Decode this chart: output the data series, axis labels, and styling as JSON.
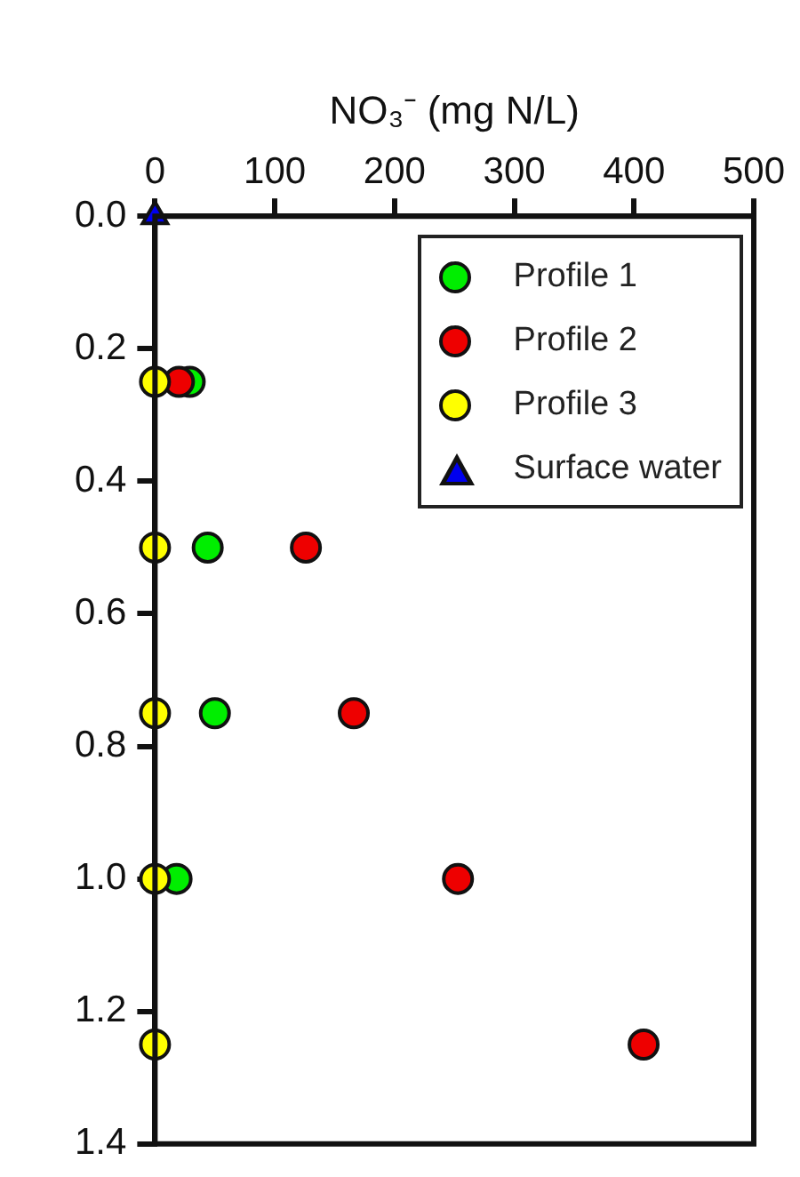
{
  "chart_data": {
    "type": "scatter",
    "xlabel": "NO₃⁻ (mg N/L)",
    "xlim": [
      0,
      500
    ],
    "xticks": [
      0,
      100,
      200,
      300,
      400,
      500
    ],
    "ylim": [
      1.4,
      0
    ],
    "yticks": [
      {
        "value": 0,
        "label": "0.0"
      },
      {
        "value": 0.2,
        "label": "0.2"
      },
      {
        "value": 0.4,
        "label": "0.4"
      },
      {
        "value": 0.6,
        "label": "0.6"
      },
      {
        "value": 0.8,
        "label": "0.8"
      },
      {
        "value": 1,
        "label": "1.0"
      },
      {
        "value": 1.2,
        "label": "1.2"
      },
      {
        "value": 1.4,
        "label": "1.4"
      }
    ],
    "grid": false,
    "legend": "top right",
    "series": [
      {
        "name": "Profile 1",
        "color": "#00ee00",
        "marker": "circle",
        "x": [
          29,
          44,
          50,
          18
        ],
        "values": [
          0.25,
          0.5,
          0.75,
          1.0
        ]
      },
      {
        "name": "Profile 2",
        "color": "#ee0000",
        "marker": "circle",
        "x": [
          20,
          126,
          166,
          253,
          408
        ],
        "values": [
          0.25,
          0.5,
          0.75,
          1.0,
          1.25
        ]
      },
      {
        "name": "Profile 3",
        "color": "#ffff00",
        "marker": "circle",
        "x": [
          0,
          0,
          0,
          0,
          0
        ],
        "values": [
          0.25,
          0.5,
          0.75,
          1.0,
          1.25
        ]
      },
      {
        "name": "Surface water",
        "color": "#0000ee",
        "marker": "triangle",
        "x": [
          0
        ],
        "values": [
          0
        ]
      }
    ]
  }
}
